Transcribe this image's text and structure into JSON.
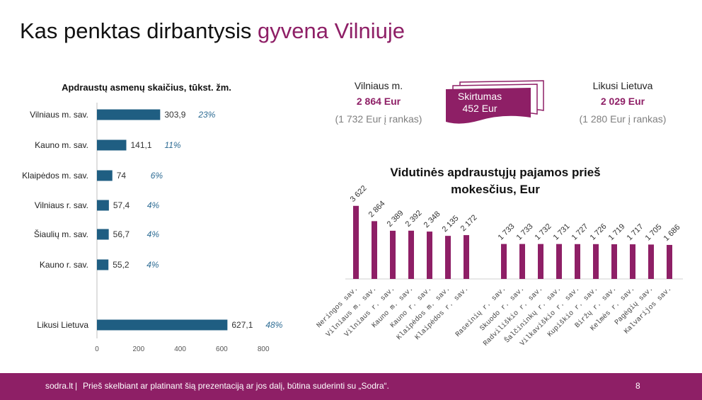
{
  "slide": {
    "title_main": "Kas penktas dirbantysis",
    "title_accent": "gyvena Vilniuje"
  },
  "colors": {
    "accent": "#8e1f66",
    "bar_left": "#1f5e82",
    "pct_text": "#2e6c94",
    "muted": "#7f7f7f"
  },
  "vilnius": {
    "label": "Vilniaus m.",
    "amount": "2 864 Eur",
    "note": "(1 732 Eur į rankas)"
  },
  "rest": {
    "label": "Likusi Lietuva",
    "amount": "2 029 Eur",
    "note": "(1 280 Eur į rankas)"
  },
  "difference": {
    "label": "Skirtumas",
    "amount": "452 Eur"
  },
  "footer": {
    "brand": "sodra.lt",
    "separator": "|",
    "disclaimer": "Prieš skelbiant ar platinant šią prezentaciją ar jos dalį, būtina suderinti su „Sodra“.",
    "page": "8"
  },
  "chart_data": [
    {
      "type": "bar",
      "orientation": "horizontal",
      "title": "Apdraustų asmenų skaičius, tūkst. žm.",
      "categories": [
        "Vilniaus m. sav.",
        "Kauno m. sav.",
        "Klaipėdos m. sav.",
        "Vilniaus r. sav.",
        "Šiaulių m. sav.",
        "Kauno r. sav.",
        "Likusi Lietuva"
      ],
      "values": [
        303.9,
        141.1,
        74,
        57.4,
        56.7,
        55.2,
        627.1
      ],
      "value_labels": [
        "303,9",
        "141,1",
        "74",
        "57,4",
        "56,7",
        "55,2",
        "627,1"
      ],
      "percent_labels": [
        "23%",
        "11%",
        "6%",
        "4%",
        "4%",
        "4%",
        "48%"
      ],
      "xlim": [
        0,
        800
      ],
      "xticks": [
        0,
        200,
        400,
        600,
        800
      ],
      "grid": false
    },
    {
      "type": "bar",
      "orientation": "vertical",
      "title": "Vidutinės apdraustųjų pajamos prieš mokesčius, Eur",
      "groups": [
        {
          "categories": [
            "Neringos sav.",
            "Vilniaus m. sav.",
            "Vilniaus r. sav.",
            "Kauno m. sav.",
            "Kauno r. sav.",
            "Klaipėdos m. sav.",
            "Klaipėdos r. sav."
          ],
          "values": [
            3622,
            2864,
            2389,
            2392,
            2348,
            2135,
            2172
          ],
          "value_labels": [
            "3 622",
            "2 864",
            "2 389",
            "2 392",
            "2 348",
            "2 135",
            "2 172"
          ]
        },
        {
          "categories": [
            "Raseinių r. sav.",
            "Skuodo r. sav.",
            "Radviliškio r. sav.",
            "Šalčininkų r. sav.",
            "Vilkaviškio r. sav.",
            "Kupiškio r. sav.",
            "Biržų r. sav.",
            "Kelmės r. sav.",
            "Pagėgių sav.",
            "Kalvarijos sav."
          ],
          "values": [
            1733,
            1733,
            1732,
            1731,
            1727,
            1726,
            1719,
            1717,
            1705,
            1686
          ],
          "value_labels": [
            "1 733",
            "1 733",
            "1 732",
            "1 731",
            "1 727",
            "1 726",
            "1 719",
            "1 717",
            "1 705",
            "1 686"
          ]
        }
      ],
      "ylim": [
        0,
        3800
      ],
      "grid": false
    }
  ]
}
